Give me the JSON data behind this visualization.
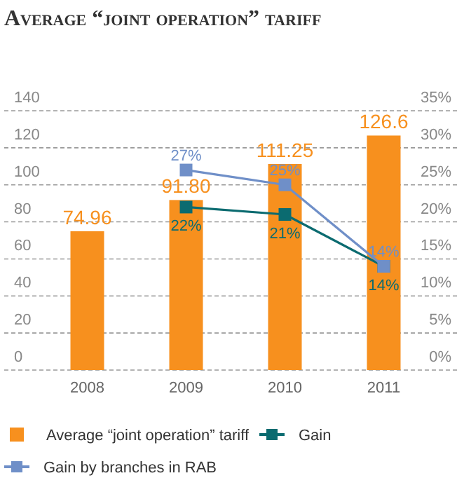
{
  "chart_data": {
    "type": "bar",
    "title": "Average “joint operation” tariff",
    "categories": [
      "2008",
      "2009",
      "2010",
      "2011"
    ],
    "series": [
      {
        "name": "Average “joint operation” tariff",
        "color": "#f7901e",
        "values": [
          74.96,
          91.8,
          111.25,
          126.6
        ],
        "value_labels": [
          "74.96",
          "91.80",
          "111.25",
          "126.6"
        ]
      },
      {
        "name": "Gain",
        "type": "line",
        "axis": "y2",
        "color": "#0b6b70",
        "values": [
          null,
          22,
          21,
          14
        ],
        "value_labels": [
          null,
          "22%",
          "21%",
          "14%"
        ]
      },
      {
        "name": "Gain by branches in RAB",
        "type": "line",
        "axis": "y2",
        "color": "#6f8fc8",
        "values": [
          null,
          27,
          25,
          14
        ],
        "value_labels": [
          null,
          "27%",
          "25%",
          "14%"
        ]
      }
    ],
    "ylim": [
      0,
      140
    ],
    "yticks": [
      0,
      20,
      40,
      60,
      80,
      100,
      120,
      140
    ],
    "y2lim": [
      0,
      35
    ],
    "y2ticks": [
      {
        "value": 0,
        "label": "0%"
      },
      {
        "value": 5,
        "label": "5%"
      },
      {
        "value": 10,
        "label": "10%"
      },
      {
        "value": 15,
        "label": "15%"
      },
      {
        "value": 20,
        "label": "20%"
      },
      {
        "value": 25,
        "label": "25%"
      },
      {
        "value": 30,
        "label": "30%"
      },
      {
        "value": 35,
        "label": "35%"
      }
    ],
    "grid": "y",
    "legend": "bottom",
    "marker": "square",
    "line_style": "solid"
  }
}
